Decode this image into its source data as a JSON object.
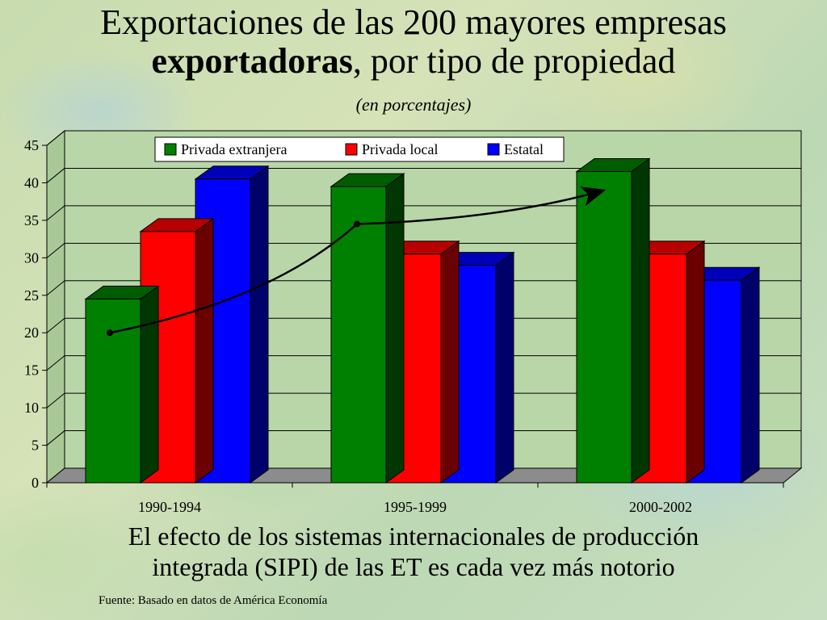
{
  "title": {
    "line1": "Exportaciones de las 200 mayores empresas",
    "line2_bold": "exportadoras",
    "line2_rest": ", por tipo de propiedad"
  },
  "subtitle": "(en porcentajes)",
  "caption": {
    "line1": "El efecto de los sistemas internacionales de producción",
    "line2": "integrada (SIPI) de las ET es cada vez más notorio"
  },
  "source": "Fuente: Basado en datos de América Economía",
  "chart_data": {
    "type": "bar",
    "categories": [
      "1990-1994",
      "1995-1999",
      "2000-2002"
    ],
    "series": [
      {
        "name": "Privada extranjera",
        "color": "#008000",
        "values": [
          24.5,
          39.5,
          41.5
        ]
      },
      {
        "name": "Privada local",
        "color": "#ff0000",
        "values": [
          33.5,
          30.5,
          30.5
        ]
      },
      {
        "name": "Estatal",
        "color": "#0000ff",
        "values": [
          40.5,
          29,
          27
        ]
      }
    ],
    "ylim": [
      0,
      45
    ],
    "yticks": [
      0,
      5,
      10,
      15,
      20,
      25,
      30,
      35,
      40,
      45
    ],
    "grid": true,
    "legend_position": "top-right",
    "trend_arrow": {
      "values": [
        20,
        34.5,
        39
      ],
      "color": "#000000"
    }
  }
}
